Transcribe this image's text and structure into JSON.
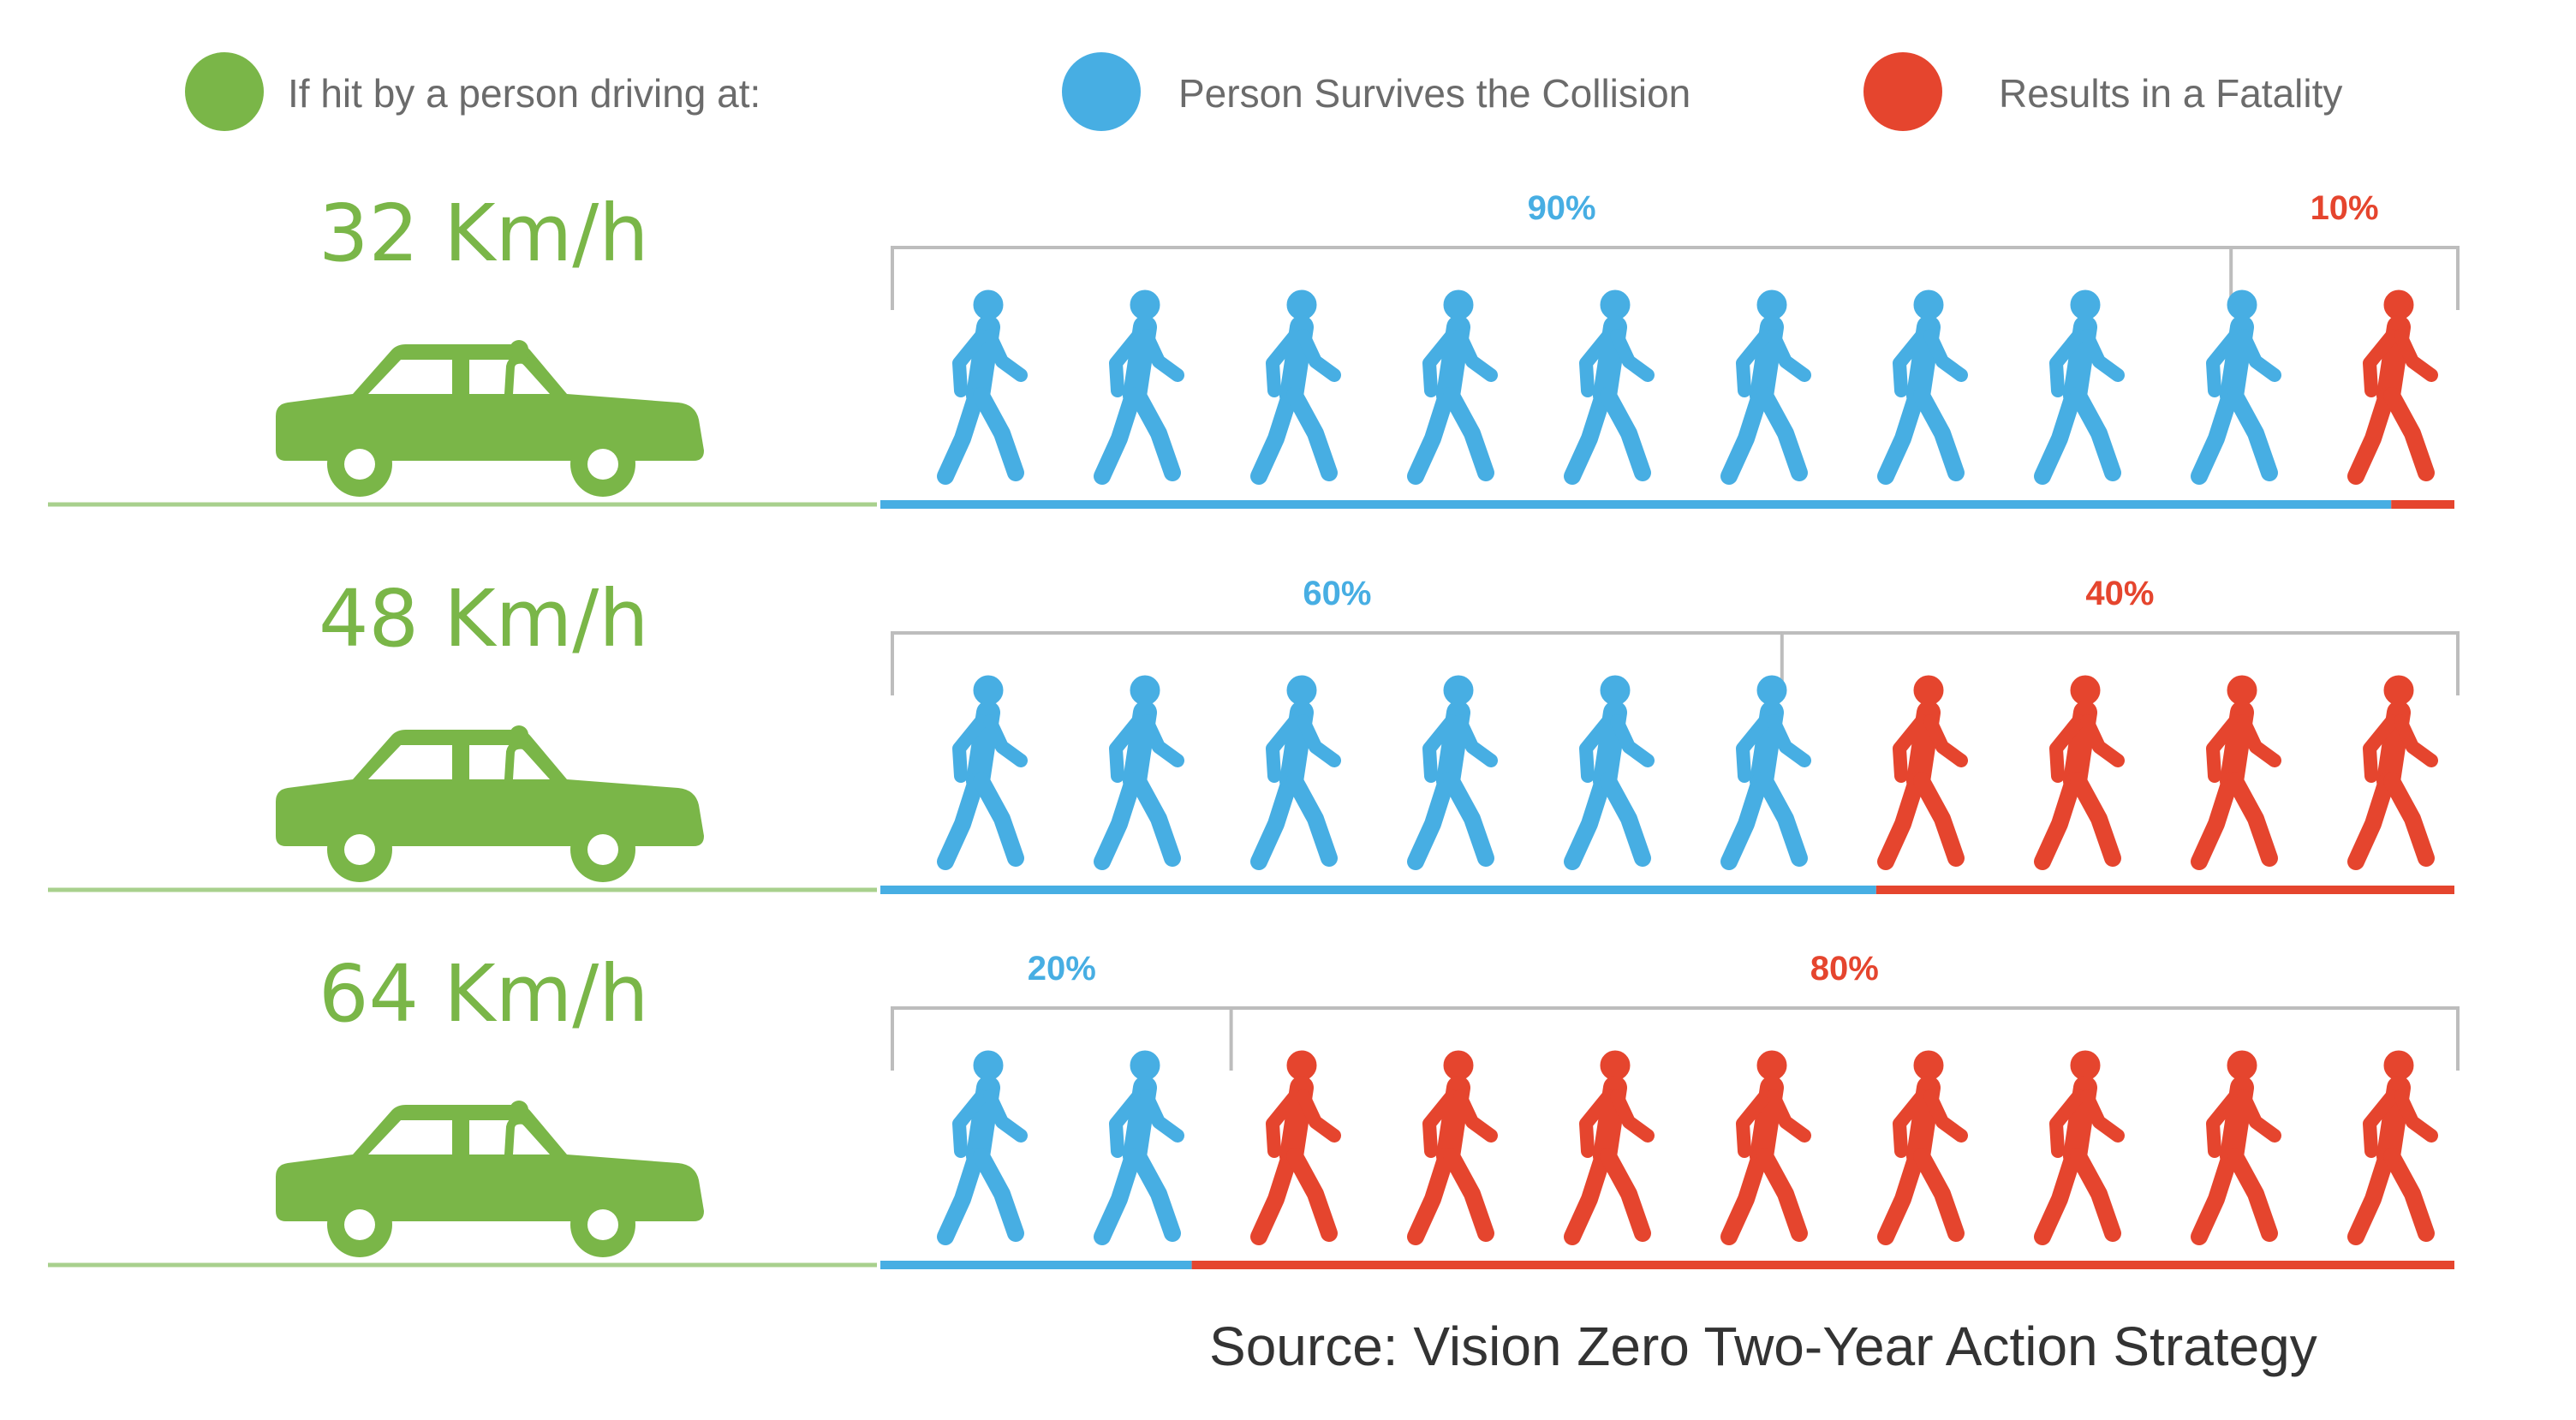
{
  "legend": {
    "speed_label": "If hit by a person driving at:",
    "survive_label": "Person Survives the Collision",
    "fatal_label": "Results in a Fatality"
  },
  "colors": {
    "car": "#7ab648",
    "survive": "#47aee3",
    "fatal": "#e5452e",
    "bracket": "#bdbdbd",
    "road": "#a8d08d"
  },
  "icons": {
    "car": "car-icon",
    "pedestrian": "pedestrian-icon"
  },
  "source": "Source: Vision Zero Two-Year Action Strategy",
  "chart_data": {
    "type": "bar",
    "categories": [
      "32 Km/h",
      "48 Km/h",
      "64 Km/h"
    ],
    "series": [
      {
        "name": "Person Survives the Collision",
        "values": [
          90,
          60,
          20
        ],
        "labels": [
          "90%",
          "60%",
          "20%"
        ]
      },
      {
        "name": "Results in a Fatality",
        "values": [
          10,
          40,
          80
        ],
        "labels": [
          "10%",
          "40%",
          "80%"
        ]
      }
    ],
    "people_per_row": 10,
    "ylim": [
      0,
      100
    ]
  }
}
